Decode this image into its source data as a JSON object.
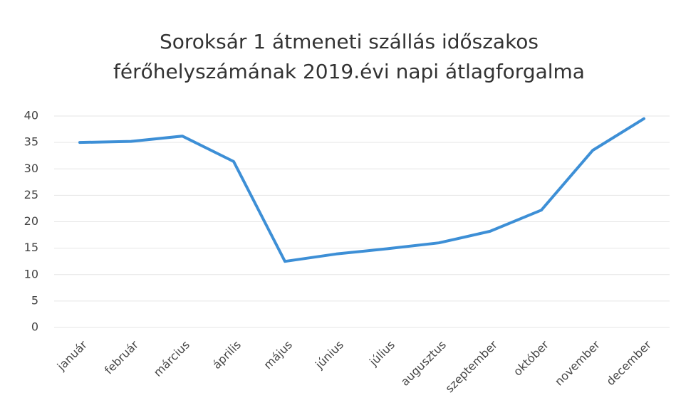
{
  "chart_data": {
    "type": "line",
    "title": [
      "Soroksár 1 átmeneti szállás időszakos",
      "férőhelyszámának 2019.évi napi átlagforgalma"
    ],
    "categories": [
      "január",
      "február",
      "március",
      "április",
      "május",
      "június",
      "július",
      "augusztus",
      "szeptember",
      "október",
      "november",
      "december"
    ],
    "values": [
      35.0,
      35.2,
      36.2,
      31.4,
      12.5,
      13.9,
      14.9,
      16.0,
      18.2,
      22.2,
      33.5,
      39.5
    ],
    "color": "#3d8fd6",
    "ylim": [
      0,
      40
    ],
    "yticks": [
      0,
      5,
      10,
      15,
      20,
      25,
      30,
      35,
      40
    ],
    "grid": true
  }
}
